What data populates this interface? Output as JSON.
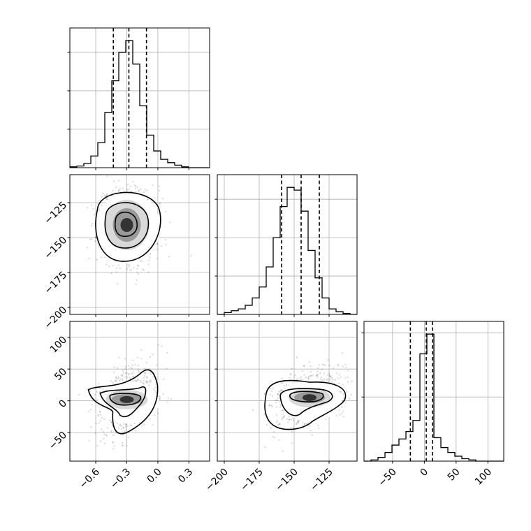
{
  "chart_data": {
    "type": "corner",
    "parameters": [
      {
        "range": [
          -0.85,
          0.5
        ],
        "ticks": [
          -0.6,
          -0.3,
          0.0,
          0.3
        ],
        "tick_labels": [
          "−0.6",
          "−0.3",
          "0.0",
          "0.3"
        ],
        "quantiles": [
          -0.43,
          -0.28,
          -0.11
        ],
        "hist_edges_start": -0.85,
        "hist_bin_width": 0.0675,
        "hist_counts": [
          1,
          2,
          5,
          14,
          30,
          66,
          104,
          138,
          152,
          124,
          74,
          39,
          20,
          10,
          6,
          3,
          1,
          0,
          0,
          0
        ]
      },
      {
        "range": [
          -205,
          -105
        ],
        "ticks": [
          -200,
          -175,
          -150,
          -125
        ],
        "tick_labels": [
          "−200",
          "−175",
          "−150",
          "−125"
        ],
        "quantiles": [
          -159,
          -145,
          -132
        ],
        "hist_edges_start": -205,
        "hist_bin_width": 5,
        "hist_counts": [
          0,
          2,
          4,
          6,
          10,
          18,
          30,
          52,
          84,
          118,
          139,
          136,
          113,
          70,
          40,
          18,
          6,
          3,
          1,
          0
        ]
      },
      {
        "range": [
          -95,
          125
        ],
        "ticks": [
          -50,
          0,
          50,
          100
        ],
        "tick_labels": [
          "−50",
          "0",
          "50",
          "100"
        ],
        "quantiles": [
          -22,
          3,
          13
        ],
        "hist_edges_start": -95,
        "hist_bin_width": 11,
        "hist_counts": [
          0,
          1,
          3,
          7,
          13,
          18,
          24,
          33,
          87,
          103,
          19,
          11,
          7,
          4,
          2,
          1,
          0,
          0,
          0,
          0
        ]
      }
    ],
    "joint_peaks": [
      {
        "row": 1,
        "col": 0,
        "peak": [
          -0.3,
          -141
        ]
      },
      {
        "row": 2,
        "col": 0,
        "peak": [
          -0.3,
          2
        ]
      },
      {
        "row": 2,
        "col": 1,
        "peak": [
          -139,
          5
        ]
      }
    ]
  }
}
